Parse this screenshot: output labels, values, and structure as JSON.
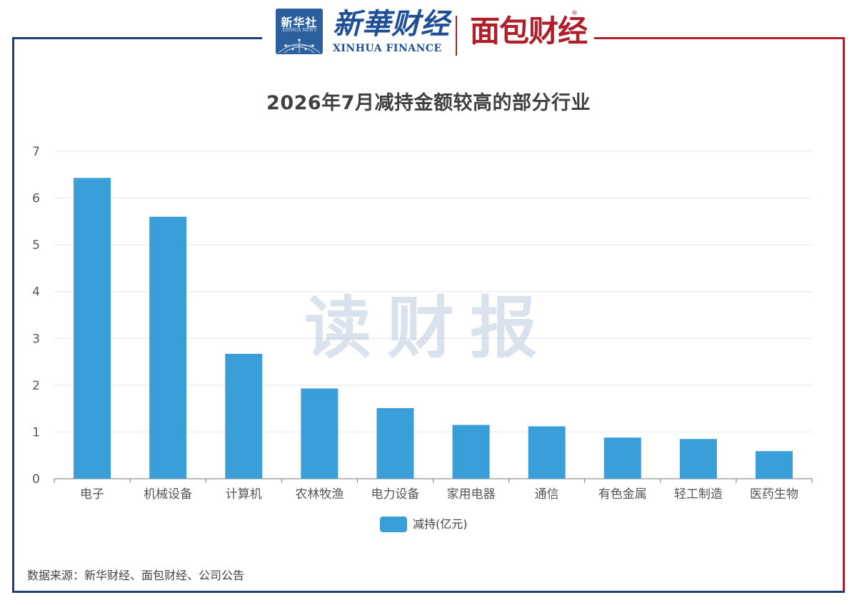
{
  "header": {
    "xinhua_she_label": "新华社",
    "xinhua_she_sub": "XINHUA NEWS",
    "xinhua_finance_cn": "新華财经",
    "xinhua_finance_en": "XINHUA FINANCE",
    "mianbao_logo": "面包财经",
    "registered_mark": "®"
  },
  "watermark": "读财报",
  "source_note": "数据来源：新华财经、面包财经、公司公告",
  "colors": {
    "bar": "#3a9fd8",
    "frame_blue": "#1f3f7a",
    "frame_red": "#b01e2a",
    "grid": "#e3e8f0",
    "axis": "#7a7a7a",
    "text": "#404040"
  },
  "chart_data": {
    "type": "bar",
    "title": "2026年7月减持金额较高的部分行业",
    "xlabel": "",
    "ylabel": "",
    "ylim": [
      0,
      7
    ],
    "yticks": [
      0,
      1,
      2,
      3,
      4,
      5,
      6,
      7
    ],
    "grid": true,
    "legend_position": "bottom-center",
    "categories": [
      "电子",
      "机械设备",
      "计算机",
      "农林牧渔",
      "电力设备",
      "家用电器",
      "通信",
      "有色金属",
      "轻工制造",
      "医药生物"
    ],
    "series": [
      {
        "name": "减持(亿元)",
        "color": "#3a9fd8",
        "values": [
          6.43,
          5.6,
          2.67,
          1.93,
          1.51,
          1.15,
          1.12,
          0.88,
          0.85,
          0.59
        ]
      }
    ]
  }
}
